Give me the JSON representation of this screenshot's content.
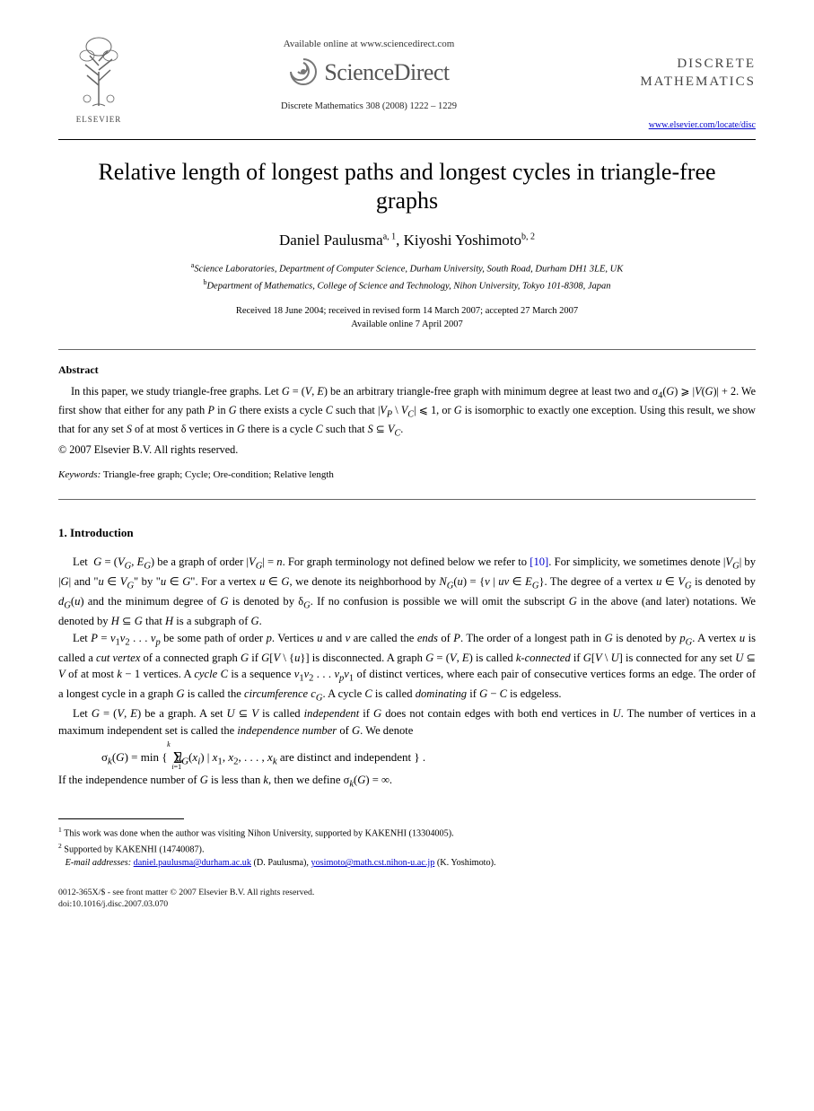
{
  "header": {
    "elsevier_label": "ELSEVIER",
    "available_line": "Available online at www.sciencedirect.com",
    "sciencedirect_label": "ScienceDirect",
    "journal_reference": "Discrete Mathematics 308 (2008) 1222 – 1229",
    "journal_name_line1": "DISCRETE",
    "journal_name_line2": "MATHEMATICS",
    "journal_url": "www.elsevier.com/locate/disc"
  },
  "title": "Relative length of longest paths and longest cycles in triangle-free graphs",
  "authors_html": "Daniel Paulusma<sup>a, 1</sup>, Kiyoshi Yoshimoto<sup>b, 2</sup>",
  "affiliations": {
    "a": "Science Laboratories, Department of Computer Science, Durham University, South Road, Durham DH1 3LE, UK",
    "b": "Department of Mathematics, College of Science and Technology, Nihon University, Tokyo 101-8308, Japan"
  },
  "dates": {
    "line1": "Received 18 June 2004; received in revised form 14 March 2007; accepted 27 March 2007",
    "line2": "Available online 7 April 2007"
  },
  "abstract": {
    "heading": "Abstract",
    "body_html": "In this paper, we study triangle-free graphs. Let <i>G</i> = (<i>V</i>, <i>E</i>) be an arbitrary triangle-free graph with minimum degree at least two and σ<sub>4</sub>(<i>G</i>) ⩾ |<i>V</i>(<i>G</i>)| + 2. We first show that either for any path <i>P</i> in <i>G</i> there exists a cycle <i>C</i> such that |<i>V<sub>P</sub></i> \\ <i>V<sub>C</sub></i>| ⩽ 1, or <i>G</i> is isomorphic to exactly one exception. Using this result, we show that for any set <i>S</i> of at most δ vertices in <i>G</i> there is a cycle <i>C</i> such that <i>S</i> ⊆ <i>V<sub>C</sub></i>.",
    "copyright": "© 2007 Elsevier B.V. All rights reserved."
  },
  "keywords": {
    "label": "Keywords:",
    "text": " Triangle-free graph; Cycle; Ore-condition; Relative length"
  },
  "section1": {
    "heading": "1.  Introduction",
    "para1_html": "Let &nbsp;<i>G</i> = (<i>V<sub>G</sub></i>, <i>E<sub>G</sub></i>) be a graph of order |<i>V<sub>G</sub></i>| = <i>n</i>. For graph terminology not defined below we refer to <span class=\"ref-link\">[10]</span>. For simplicity, we sometimes denote |<i>V<sub>G</sub></i>| by |<i>G</i>| and \"<i>u</i> ∈ <i>V<sub>G</sub></i>\" by \"<i>u</i> ∈ <i>G</i>\". For a vertex <i>u</i> ∈ <i>G</i>, we denote its neighborhood by <i>N<sub>G</sub></i>(<i>u</i>) = {<i>v</i> | <i>uv</i> ∈ <i>E<sub>G</sub></i>}. The degree of a vertex <i>u</i> ∈ <i>V<sub>G</sub></i> is denoted by <i>d<sub>G</sub></i>(<i>u</i>) and the minimum degree of <i>G</i> is denoted by δ<sub><i>G</i></sub>. If no confusion is possible we will omit the subscript <i>G</i> in the above (and later) notations. We denoted by <i>H</i> ⊆ <i>G</i> that <i>H</i> is a subgraph of <i>G</i>.",
    "para2_html": "Let <i>P</i> = <i>v</i><sub>1</sub><i>v</i><sub>2</sub> . . . <i>v<sub>p</sub></i> be some path of order <i>p</i>. Vertices <i>u</i> and <i>v</i> are called the <i>ends</i> of <i>P</i>. The order of a longest path in <i>G</i> is denoted by <i>p<sub>G</sub></i>. A vertex <i>u</i> is called a <i>cut vertex</i> of a connected graph <i>G</i> if <i>G</i>[<i>V</i> \\ {<i>u</i>}] is disconnected. A graph <i>G</i> = (<i>V</i>, <i>E</i>) is called <i>k-connected</i> if <i>G</i>[<i>V</i> \\ <i>U</i>] is connected for any set <i>U</i> ⊆ <i>V</i> of at most <i>k</i> − 1 vertices. A <i>cycle C</i> is a sequence <i>v</i><sub>1</sub><i>v</i><sub>2</sub> . . . <i>v<sub>p</sub>v</i><sub>1</sub> of distinct vertices, where each pair of consecutive vertices forms an edge. The order of a longest cycle in a graph <i>G</i> is called the <i>circumference c<sub>G</sub></i>. A cycle <i>C</i> is called <i>dominating</i> if <i>G</i> − <i>C</i> is edgeless.",
    "para3_html": "Let <i>G</i> = (<i>V</i>, <i>E</i>) be a graph. A set <i>U</i> ⊆ <i>V</i> is called <i>independent</i> if <i>G</i> does not contain edges with both end vertices in <i>U</i>. The number of vertices in a maximum independent set is called the <i>independence number</i> of <i>G</i>. We denote",
    "equation_html": "σ<sub><i>k</i></sub>(<i>G</i>) = min &#123; &nbsp;<span style=\"font-size:18px;position:relative;top:2px;\">Σ</span><sub style=\"position:relative;left:-12px;top:6px;font-size:8px;\"><i>i</i>=1</sub><sup style=\"position:relative;left:-28px;top:-10px;font-size:8px;\"><i>k</i></sup><span style=\"margin-left:-22px;\"></span><i>d<sub>G</sub></i>(<i>x<sub>i</sub></i>) | <i>x</i><sub>1</sub>, <i>x</i><sub>2</sub>, . . . , <i>x<sub>k</sub></i> are distinct and independent &#125; .",
    "para4_html": "If the independence number of <i>G</i> is less than <i>k</i>, then we define σ<sub><i>k</i></sub>(<i>G</i>) = ∞."
  },
  "footnotes": {
    "n1": "This work was done when the author was visiting Nihon University, supported by KAKENHI (13304005).",
    "n2": "Supported by KAKENHI (14740087).",
    "email_label": "E-mail addresses:",
    "email1": "daniel.paulusma@durham.ac.uk",
    "email1_post": " (D. Paulusma), ",
    "email2": "yosimoto@math.cst.nihon-u.ac.jp",
    "email2_post": " (K. Yoshimoto)."
  },
  "bottom": {
    "line1": "0012-365X/$ - see front matter © 2007 Elsevier B.V. All rights reserved.",
    "line2": "doi:10.1016/j.disc.2007.03.070"
  },
  "colors": {
    "link": "#0000cc",
    "text": "#000000",
    "logo_gray": "#555555"
  }
}
